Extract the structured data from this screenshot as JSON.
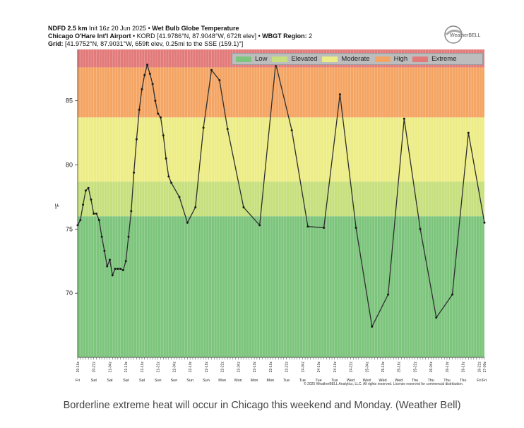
{
  "header": {
    "line1_bold": "NDFD 2.5 km",
    "line1_init": "Init 16z 20 Jun 2025",
    "line1_sep": "•",
    "line1_product": "Wet Bulb Globe Temperature",
    "line2_station": "Chicago O'Hare Int'l Airport",
    "line2_sep": "•",
    "line2_loc": "KORD [41.9786°N, 87.9048°W, 672ft elev]",
    "line2_sep2": "•",
    "line2_region_label": "WBGT Region:",
    "line2_region_value": "2",
    "line3_label": "Grid:",
    "line3_value": "[41.9752°N, 87.9031°W, 659ft elev, 0.25mi to the SSE (159.1)°]"
  },
  "logo": {
    "text": "WeatherBELL",
    "icon": "weatherbell-logo-icon"
  },
  "copyright": "© 2025 WeatherBELL Analytics, LLC. All rights reserved. License reserved for commercial distribution.",
  "caption": "Borderline extreme heat will occur in Chicago this weekend and Monday. (Weather Bell)",
  "colors": {
    "low": "#7dc57d",
    "elevated": "#c7e07d",
    "moderate": "#eded87",
    "high": "#f5a563",
    "extreme": "#e37a7a",
    "line": "#2e2e2e"
  },
  "chart_data": {
    "type": "line",
    "title": "Wet Bulb Globe Temperature",
    "ylabel": "°F",
    "ylim": [
      65,
      89
    ],
    "yticks": [
      70,
      75,
      80,
      85
    ],
    "grid": true,
    "legend_position": "top-right",
    "bands": [
      {
        "name": "Low",
        "from": 65,
        "to": 76
      },
      {
        "name": "Elevated",
        "from": 76,
        "to": 78.7
      },
      {
        "name": "Moderate",
        "from": 78.7,
        "to": 83.7
      },
      {
        "name": "High",
        "from": 83.7,
        "to": 87.6
      },
      {
        "name": "Extreme",
        "from": 87.6,
        "to": 89
      }
    ],
    "legend": [
      "Low",
      "Elevated",
      "Moderate",
      "High",
      "Extreme"
    ],
    "x_start": "20 Jun 2025 16z",
    "x_end": "27 Jun 2025 00z",
    "x_hours_span": 152,
    "series": [
      {
        "values": [
          [
            0,
            75.3
          ],
          [
            1,
            75.7
          ],
          [
            2,
            76.9
          ],
          [
            3,
            78.0
          ],
          [
            4,
            78.2
          ],
          [
            5,
            77.3
          ],
          [
            6,
            76.2
          ],
          [
            7,
            76.2
          ],
          [
            8,
            75.7
          ],
          [
            9,
            74.4
          ],
          [
            10,
            73.3
          ],
          [
            11,
            72.1
          ],
          [
            12,
            72.6
          ],
          [
            13,
            71.4
          ],
          [
            14,
            71.9
          ],
          [
            15,
            71.9
          ],
          [
            16,
            71.9
          ],
          [
            17,
            71.8
          ],
          [
            18,
            72.5
          ],
          [
            19,
            74.4
          ],
          [
            20,
            76.4
          ],
          [
            21,
            79.4
          ],
          [
            22,
            82.0
          ],
          [
            23,
            84.3
          ],
          [
            24,
            85.9
          ],
          [
            25,
            87.0
          ],
          [
            26,
            87.8
          ],
          [
            27,
            87.1
          ],
          [
            28,
            86.3
          ],
          [
            29,
            85.0
          ],
          [
            30,
            84.0
          ],
          [
            31,
            83.7
          ],
          [
            32,
            82.3
          ],
          [
            33,
            80.5
          ],
          [
            34,
            79.1
          ],
          [
            35,
            78.6
          ],
          [
            38,
            77.5
          ],
          [
            41,
            75.5
          ],
          [
            44,
            76.7
          ],
          [
            47,
            82.9
          ],
          [
            50,
            87.4
          ],
          [
            53,
            86.6
          ],
          [
            56,
            82.8
          ],
          [
            62,
            76.7
          ],
          [
            68,
            75.3
          ],
          [
            74,
            87.9
          ],
          [
            80,
            82.7
          ],
          [
            86,
            75.2
          ],
          [
            92,
            75.1
          ],
          [
            98,
            85.5
          ],
          [
            104,
            75.1
          ],
          [
            110,
            67.4
          ],
          [
            116,
            69.9
          ],
          [
            122,
            83.6
          ],
          [
            128,
            75.0
          ],
          [
            134,
            68.1
          ],
          [
            140,
            69.9
          ],
          [
            146,
            82.5
          ],
          [
            152,
            75.5
          ]
        ]
      }
    ],
    "x_tick_labels": [
      {
        "h": 0,
        "top": "20-16z",
        "bot": "Fri"
      },
      {
        "h": 6,
        "top": "20-22z",
        "bot": "Sat"
      },
      {
        "h": 12,
        "top": "21-04z",
        "bot": "Sat"
      },
      {
        "h": 18,
        "top": "21-10z",
        "bot": "Sat"
      },
      {
        "h": 24,
        "top": "21-16z",
        "bot": "Sat"
      },
      {
        "h": 30,
        "top": "21-22z",
        "bot": "Sun"
      },
      {
        "h": 36,
        "top": "22-04z",
        "bot": "Sun"
      },
      {
        "h": 42,
        "top": "22-10z",
        "bot": "Sun"
      },
      {
        "h": 48,
        "top": "22-16z",
        "bot": "Sun"
      },
      {
        "h": 54,
        "top": "22-22z",
        "bot": "Mon"
      },
      {
        "h": 60,
        "top": "23-04z",
        "bot": "Mon"
      },
      {
        "h": 66,
        "top": "23-10z",
        "bot": "Mon"
      },
      {
        "h": 72,
        "top": "23-16z",
        "bot": "Mon"
      },
      {
        "h": 78,
        "top": "23-22z",
        "bot": "Tue"
      },
      {
        "h": 84,
        "top": "24-04z",
        "bot": "Tue"
      },
      {
        "h": 90,
        "top": "24-10z",
        "bot": "Tue"
      },
      {
        "h": 96,
        "top": "24-16z",
        "bot": "Tue"
      },
      {
        "h": 102,
        "top": "24-22z",
        "bot": "Wed"
      },
      {
        "h": 108,
        "top": "25-04z",
        "bot": "Wed"
      },
      {
        "h": 114,
        "top": "25-10z",
        "bot": "Wed"
      },
      {
        "h": 120,
        "top": "25-16z",
        "bot": "Wed"
      },
      {
        "h": 126,
        "top": "25-22z",
        "bot": "Thu"
      },
      {
        "h": 132,
        "top": "26-04z",
        "bot": "Thu"
      },
      {
        "h": 138,
        "top": "26-10z",
        "bot": "Thu"
      },
      {
        "h": 144,
        "top": "26-16z",
        "bot": "Thu"
      },
      {
        "h": 150,
        "top": "26-22z",
        "bot": "Fri"
      },
      {
        "h": 152,
        "top": "27-00z",
        "bot": "Fri"
      }
    ]
  }
}
